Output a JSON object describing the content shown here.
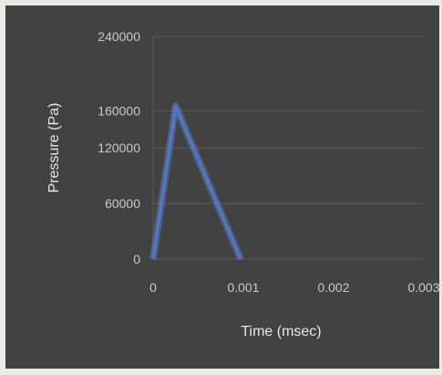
{
  "chart_data": {
    "type": "line",
    "title": "",
    "xlabel": "Time (msec)",
    "ylabel": "Pressure (Pa)",
    "xlim": [
      0,
      0.003
    ],
    "ylim": [
      0,
      240000
    ],
    "x_ticks": [
      "0",
      "0.001",
      "0.002",
      "0.003"
    ],
    "y_ticks": [
      "0",
      "60000",
      "120000",
      "160000",
      "240000"
    ],
    "grid": true,
    "legend": "none",
    "series": [
      {
        "x": [
          0,
          0.00025,
          0.00097
        ],
        "y": [
          0,
          165000,
          0
        ]
      }
    ],
    "colors": {
      "background": "#424242",
      "line": "#4f76c9",
      "grid": "#5a5a5a"
    }
  }
}
